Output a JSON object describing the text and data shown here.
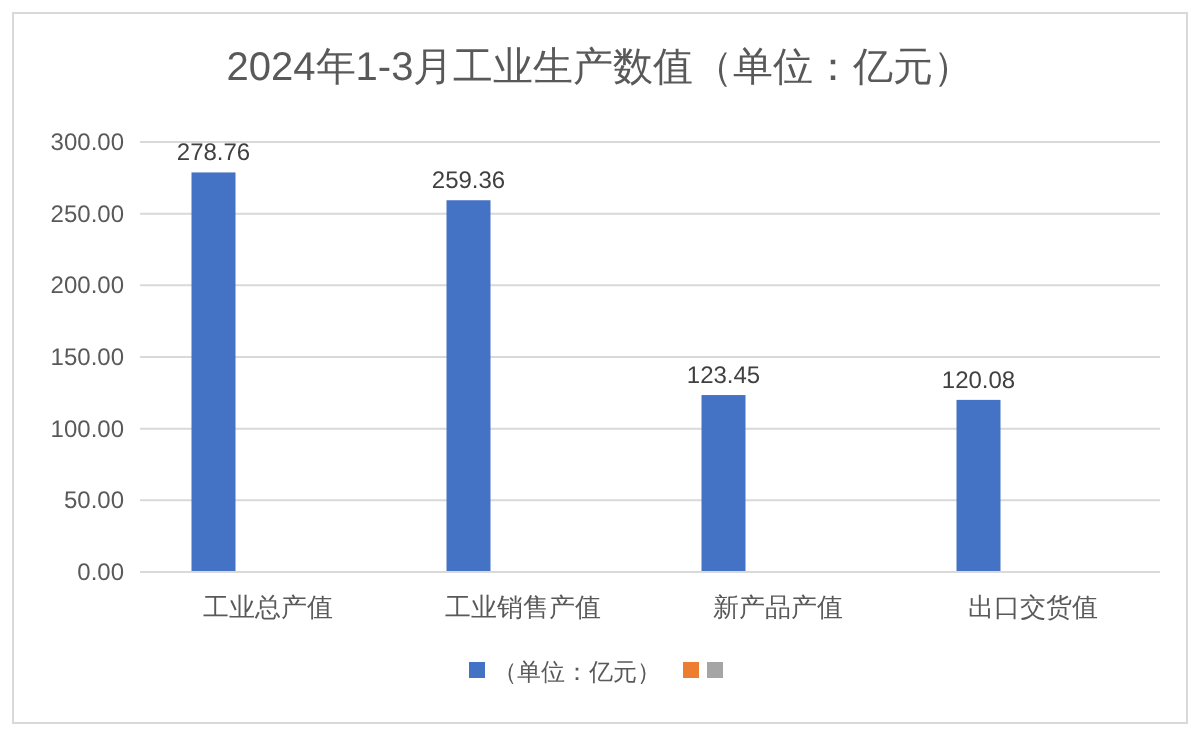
{
  "chart_data": {
    "type": "bar",
    "title": "2024年1-3月工业生产数值（单位：亿元）",
    "categories": [
      "工业总产值",
      "工业销售产值",
      "新产品产值",
      "出口交货值"
    ],
    "series": [
      {
        "name": "（单位：亿元）",
        "color": "#4472c4",
        "values": [
          278.76,
          259.36,
          123.45,
          120.08
        ]
      },
      {
        "color": "#ed7d31",
        "values": [
          null,
          null,
          null,
          null
        ]
      },
      {
        "color": "#a5a5a5",
        "values": [
          null,
          null,
          null,
          null
        ]
      }
    ],
    "ylim": [
      0,
      300
    ],
    "yticks": [
      {
        "value": 0,
        "label": "0.00"
      },
      {
        "value": 50,
        "label": "50.00"
      },
      {
        "value": 100,
        "label": "100.00"
      },
      {
        "value": 150,
        "label": "150.00"
      },
      {
        "value": 200,
        "label": "200.00"
      },
      {
        "value": 250,
        "label": "250.00"
      },
      {
        "value": 300,
        "label": "300.00"
      }
    ],
    "grid": "y",
    "data_labels": true,
    "legend": "bottom"
  }
}
